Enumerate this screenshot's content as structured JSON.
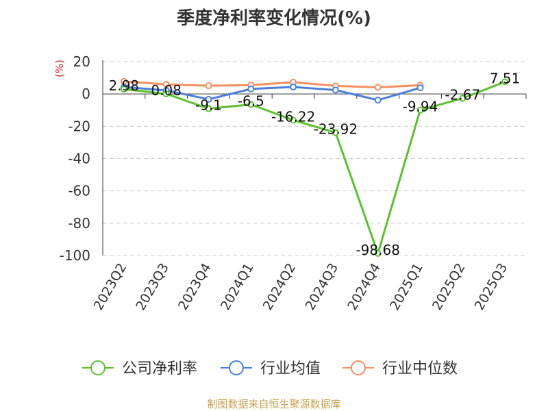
{
  "chart_data": {
    "type": "line",
    "title": "季度净利率变化情况(%)",
    "unit_label": "(%)",
    "categories": [
      "2023Q2",
      "2023Q3",
      "2023Q4",
      "2024Q1",
      "2024Q2",
      "2024Q3",
      "2024Q4",
      "2025Q1",
      "2025Q2",
      "2025Q3"
    ],
    "ylim": [
      -100,
      20
    ],
    "yticks": [
      20,
      0,
      -20,
      -40,
      -60,
      -80,
      -100
    ],
    "grid": true,
    "legend_position": "bottom",
    "series": [
      {
        "name": "公司净利率",
        "color": "#5ac12c",
        "values": [
          2.98,
          0.08,
          -9.1,
          -6.5,
          -16.22,
          -23.92,
          -98.68,
          -9.94,
          -2.67,
          7.51
        ],
        "labels": [
          "2.98",
          "0.08",
          "-9.1",
          "-6.5",
          "-16.22",
          "-23.92",
          "-98.68",
          "-9.94",
          "-2.67",
          "7.51"
        ]
      },
      {
        "name": "行业均值",
        "color": "#4a7fdc",
        "values": [
          4.3,
          2.2,
          -3.3,
          3.1,
          4.3,
          2.4,
          -3.8,
          3.8,
          null,
          null
        ]
      },
      {
        "name": "行业中位数",
        "color": "#f39060",
        "values": [
          7.8,
          5.9,
          5.1,
          5.5,
          7.3,
          5.0,
          4.1,
          5.4,
          null,
          null
        ]
      }
    ]
  },
  "footer": {
    "source": "制图数据来自恒生聚源数据库"
  }
}
